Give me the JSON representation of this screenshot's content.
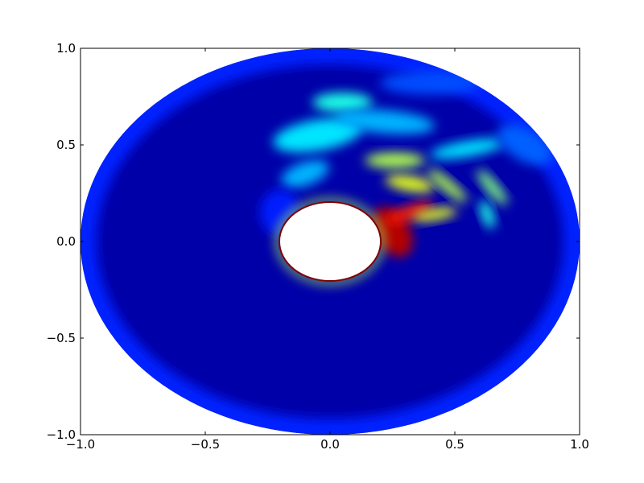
{
  "chart_data": {
    "type": "heatmap",
    "title": "",
    "xlabel": "",
    "ylabel": "",
    "xlim": [
      -1.0,
      1.0
    ],
    "ylim": [
      -1.0,
      1.0
    ],
    "x_ticks": [
      -1.0,
      -0.5,
      0.0,
      0.5,
      1.0
    ],
    "y_ticks": [
      -1.0,
      -0.5,
      0.0,
      0.5,
      1.0
    ],
    "x_tick_labels": [
      "−1.0",
      "−0.5",
      "0.0",
      "0.5",
      "1.0"
    ],
    "y_tick_labels": [
      "−1.0",
      "−0.5",
      "0.0",
      "0.5",
      "1.0"
    ],
    "grid": false,
    "colormap": "jet",
    "domain": {
      "shape": "annulus",
      "outer_radius": 1.0,
      "inner_radius": 0.2,
      "center": [
        0.0,
        0.0
      ]
    },
    "inner_boundary_value": 1.0,
    "background_value": 0.0,
    "features": [
      {
        "kind": "plume-root",
        "center": [
          0.25,
          0.05
        ],
        "radius": [
          0.07,
          0.14
        ],
        "rotation_deg": 30,
        "value": 0.95
      },
      {
        "kind": "plume-streak",
        "center": [
          0.32,
          0.15
        ],
        "radius": [
          0.1,
          0.035
        ],
        "rotation_deg": 20,
        "value": 0.85
      },
      {
        "kind": "plume-streak",
        "center": [
          0.42,
          0.14
        ],
        "radius": [
          0.09,
          0.03
        ],
        "rotation_deg": 10,
        "value": 0.6
      },
      {
        "kind": "filament",
        "center": [
          0.32,
          0.3
        ],
        "radius": [
          0.1,
          0.04
        ],
        "rotation_deg": -10,
        "value": 0.6
      },
      {
        "kind": "filament",
        "center": [
          0.26,
          0.42
        ],
        "radius": [
          0.12,
          0.04
        ],
        "rotation_deg": 0,
        "value": 0.55
      },
      {
        "kind": "filament",
        "center": [
          0.47,
          0.29
        ],
        "radius": [
          0.1,
          0.03
        ],
        "rotation_deg": -40,
        "value": 0.55
      },
      {
        "kind": "filament",
        "center": [
          0.65,
          0.28
        ],
        "radius": [
          0.09,
          0.03
        ],
        "rotation_deg": -50,
        "value": 0.5
      },
      {
        "kind": "filament",
        "center": [
          0.63,
          0.14
        ],
        "radius": [
          0.06,
          0.03
        ],
        "rotation_deg": -70,
        "value": 0.4
      },
      {
        "kind": "filament",
        "center": [
          0.55,
          0.48
        ],
        "radius": [
          0.15,
          0.04
        ],
        "rotation_deg": 10,
        "value": 0.35
      },
      {
        "kind": "wisp",
        "center": [
          -0.05,
          0.55
        ],
        "radius": [
          0.18,
          0.08
        ],
        "rotation_deg": 10,
        "value": 0.35
      },
      {
        "kind": "wisp",
        "center": [
          0.05,
          0.72
        ],
        "radius": [
          0.12,
          0.05
        ],
        "rotation_deg": 0,
        "value": 0.4
      },
      {
        "kind": "wisp",
        "center": [
          -0.1,
          0.35
        ],
        "radius": [
          0.1,
          0.06
        ],
        "rotation_deg": 20,
        "value": 0.3
      },
      {
        "kind": "wisp",
        "center": [
          0.22,
          0.62
        ],
        "radius": [
          0.2,
          0.06
        ],
        "rotation_deg": -5,
        "value": 0.3
      },
      {
        "kind": "wisp",
        "center": [
          0.78,
          0.5
        ],
        "radius": [
          0.12,
          0.08
        ],
        "rotation_deg": -30,
        "value": 0.22
      },
      {
        "kind": "wisp",
        "center": [
          0.4,
          0.82
        ],
        "radius": [
          0.2,
          0.06
        ],
        "rotation_deg": 0,
        "value": 0.2
      },
      {
        "kind": "wisp",
        "center": [
          -0.2,
          0.15
        ],
        "radius": [
          0.08,
          0.12
        ],
        "rotation_deg": 0,
        "value": 0.15
      }
    ]
  }
}
